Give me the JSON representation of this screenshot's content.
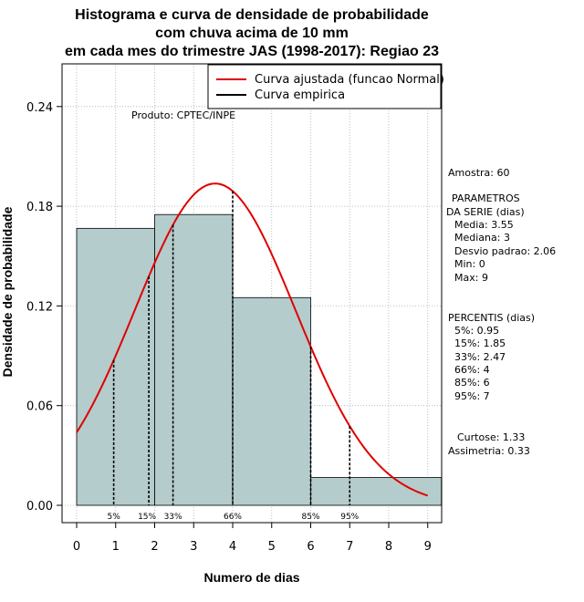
{
  "title_lines": [
    "Histograma e curva de densidade de probabilidade",
    "com chuva acima de 10 mm",
    "em cada mes do trimestre JAS (1998-2017): Regiao 23"
  ],
  "credit": "Produto: CPTEC/INPE",
  "legend": {
    "fitted": "Curva ajustada (funcao Normal)",
    "empirical": "Curva empirica"
  },
  "side_panel": {
    "sample": "Amostra: 60",
    "params_header_1": "PARAMETROS",
    "params_header_2": "DA SERIE (dias)",
    "params": [
      "Media: 3.55",
      "Mediana: 3",
      "Desvio padrao: 2.06",
      "Min: 0",
      "Max: 9"
    ],
    "percentiles_header": "PERCENTIS (dias)",
    "percentiles": [
      "5%: 0.95",
      "15%: 1.85",
      "33%: 2.47",
      "66%: 4",
      "85%: 6",
      "95%: 7"
    ],
    "kurtosis": "Curtose: 1.33",
    "skewness": "Assimetria: 0.33"
  },
  "colors": {
    "bar_fill": "#b4cccc",
    "curve": "#e00000",
    "grid": "#b0b0b0"
  },
  "chart_data": {
    "type": "bar",
    "title": "Histograma e curva de densidade de probabilidade com chuva acima de 10 mm em cada mes do trimestre JAS (1998-2017): Regiao 23",
    "xlabel": "Numero de dias",
    "ylabel": "Densidade de probabilidade",
    "xlim": [
      -0.3,
      9.35
    ],
    "ylim": [
      0,
      0.265
    ],
    "xticks": [
      0,
      1,
      2,
      3,
      4,
      5,
      6,
      7,
      8,
      9
    ],
    "yticks": [
      0.0,
      0.06,
      0.12,
      0.18,
      0.24
    ],
    "ytick_labels": [
      "0.00",
      "0.06",
      "0.12",
      "0.18",
      "0.24"
    ],
    "histogram": [
      {
        "from": 0,
        "to": 2,
        "density": 0.1667
      },
      {
        "from": 2,
        "to": 4,
        "density": 0.175
      },
      {
        "from": 4,
        "to": 6,
        "density": 0.125
      },
      {
        "from": 6,
        "to": 9.35,
        "density": 0.0167
      }
    ],
    "normal_fit": {
      "mean": 3.55,
      "sd": 2.06,
      "x_from": 0,
      "x_to": 9
    },
    "percentile_markers": [
      {
        "label": "5%",
        "x": 0.95
      },
      {
        "label": "15%",
        "x": 1.85
      },
      {
        "label": "33%",
        "x": 2.47
      },
      {
        "label": "66%",
        "x": 4
      },
      {
        "label": "85%",
        "x": 6
      },
      {
        "label": "95%",
        "x": 7
      }
    ]
  }
}
